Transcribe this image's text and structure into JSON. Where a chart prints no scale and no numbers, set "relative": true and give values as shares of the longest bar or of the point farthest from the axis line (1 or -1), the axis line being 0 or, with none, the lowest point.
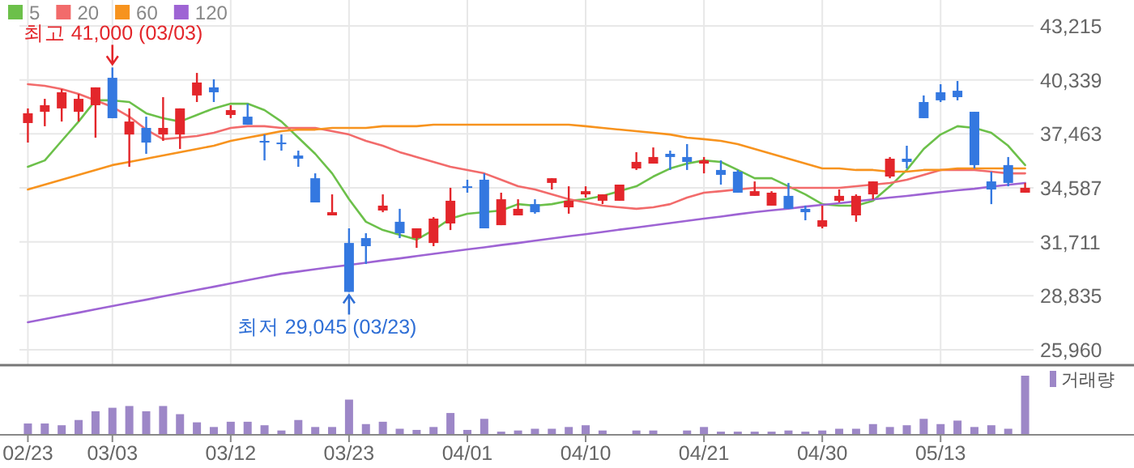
{
  "chart_data": [
    {
      "type": "candlestick",
      "categories": [
        "02/23",
        null,
        null,
        null,
        null,
        "03/03",
        null,
        null,
        null,
        null,
        null,
        null,
        "03/12",
        null,
        null,
        null,
        null,
        null,
        null,
        "03/23",
        null,
        null,
        null,
        null,
        null,
        null,
        "04/01",
        null,
        null,
        null,
        null,
        null,
        null,
        "04/10",
        null,
        null,
        null,
        null,
        null,
        null,
        "04/21",
        null,
        null,
        null,
        null,
        null,
        null,
        "04/30",
        null,
        null,
        null,
        null,
        null,
        null,
        "05/13",
        null,
        null,
        null,
        null,
        null
      ],
      "ylim": [
        25960,
        43215
      ],
      "yticks": [
        {
          "value": 43215,
          "label": "43,215"
        },
        {
          "value": 40339,
          "label": "40,339"
        },
        {
          "value": 37463,
          "label": "37,463"
        },
        {
          "value": 34587,
          "label": "34,587"
        },
        {
          "value": 31711,
          "label": "31,711"
        },
        {
          "value": 28835,
          "label": "28,835"
        },
        {
          "value": 25960,
          "label": "25,960"
        }
      ],
      "grid": true,
      "legend": "top left",
      "tick_labels": "y",
      "annotations": [
        {
          "text": "최고 41,000 (03/03)",
          "x": "03/03",
          "y": 41000
        },
        {
          "text": "최저 29,045 (03/23)",
          "x": "03/23",
          "y": 29045
        }
      ],
      "series": [
        {
          "type": "line",
          "name": "5",
          "color": "#6cc04a",
          "values": [
            35710,
            36050,
            37090,
            38120,
            39250,
            39250,
            39160,
            38560,
            38300,
            38120,
            38470,
            38820,
            39070,
            39070,
            38730,
            38120,
            37260,
            36400,
            35360,
            33980,
            32780,
            32340,
            32090,
            31830,
            32340,
            32950,
            33210,
            33290,
            33380,
            33720,
            33640,
            33720,
            33900,
            33980,
            34160,
            34410,
            34670,
            35190,
            35620,
            35880,
            36050,
            35970,
            35540,
            35100,
            35100,
            34670,
            34240,
            33720,
            33640,
            33640,
            33900,
            34670,
            35540,
            36660,
            37430,
            37870,
            37780,
            37520,
            36830,
            35800
          ]
        },
        {
          "type": "line",
          "name": "20",
          "color": "#f26b6b",
          "values": [
            40110,
            40020,
            39850,
            39590,
            39250,
            38900,
            38380,
            37690,
            37180,
            37260,
            37350,
            37520,
            37780,
            37870,
            37870,
            37780,
            37780,
            37780,
            37610,
            37430,
            37090,
            36830,
            36490,
            36230,
            35970,
            35710,
            35540,
            35360,
            35020,
            34670,
            34500,
            34240,
            33980,
            33810,
            33640,
            33550,
            33470,
            33550,
            33720,
            34070,
            34330,
            34410,
            34500,
            34590,
            34590,
            34590,
            34590,
            34590,
            34590,
            34670,
            34760,
            34850,
            35020,
            35280,
            35540,
            35540,
            35540,
            35450,
            35360,
            35360
          ]
        },
        {
          "type": "line",
          "name": "60",
          "color": "#f7931e",
          "values": [
            34500,
            34760,
            35020,
            35280,
            35540,
            35800,
            35970,
            36140,
            36310,
            36490,
            36660,
            36830,
            37090,
            37260,
            37430,
            37610,
            37690,
            37690,
            37780,
            37780,
            37780,
            37870,
            37870,
            37870,
            37950,
            37950,
            37950,
            37950,
            37950,
            37950,
            37950,
            37950,
            37950,
            37870,
            37780,
            37690,
            37610,
            37520,
            37430,
            37260,
            37180,
            37090,
            36920,
            36660,
            36400,
            36140,
            35880,
            35620,
            35620,
            35540,
            35540,
            35450,
            35450,
            35540,
            35540,
            35620,
            35620,
            35620,
            35620,
            35620
          ]
        },
        {
          "type": "line",
          "name": "120",
          "color": "#9e64d4",
          "values": [
            27430,
            27600,
            27770,
            27940,
            28120,
            28290,
            28460,
            28630,
            28810,
            28980,
            29150,
            29320,
            29500,
            29670,
            29840,
            30010,
            30130,
            30250,
            30370,
            30480,
            30600,
            30720,
            30830,
            30950,
            31070,
            31190,
            31310,
            31420,
            31540,
            31650,
            31770,
            31890,
            32010,
            32120,
            32240,
            32360,
            32470,
            32590,
            32710,
            32830,
            32950,
            33060,
            33180,
            33290,
            33390,
            33480,
            33590,
            33680,
            33770,
            33870,
            33970,
            34070,
            34160,
            34260,
            34360,
            34460,
            34540,
            34650,
            34750,
            34850
          ]
        },
        {
          "type": "candlestick",
          "colors": [
            "#e3262b",
            "#e3262b",
            "#e3262b",
            "#e3262b",
            "#e3262b",
            "#3478e0",
            "#e3262b",
            "#3478e0",
            "#e3262b",
            "#e3262b",
            "#e3262b",
            "#3478e0",
            "#e3262b",
            "#3478e0",
            "#3478e0",
            "#3478e0",
            "#3478e0",
            "#3478e0",
            "#e3262b",
            "#3478e0",
            "#3478e0",
            "#e3262b",
            "#3478e0",
            "#e3262b",
            "#e3262b",
            "#e3262b",
            "#3478e0",
            "#3478e0",
            "#e3262b",
            "#e3262b",
            "#3478e0",
            "#e3262b",
            "#e3262b",
            "#e3262b",
            "#e3262b",
            "#e3262b",
            "#e3262b",
            "#e3262b",
            "#3478e0",
            "#3478e0",
            "#e3262b",
            "#3478e0",
            "#3478e0",
            "#e3262b",
            "#e3262b",
            "#3478e0",
            "#3478e0",
            "#e3262b",
            "#e3262b",
            "#e3262b",
            "#e3262b",
            "#e3262b",
            "#3478e0",
            "#3478e0",
            "#3478e0",
            "#3478e0",
            "#3478e0",
            "#3478e0",
            "#3478e0",
            "#e3262b"
          ],
          "ohlc": [
            [
              38040,
              38820,
              37000,
              38560
            ],
            [
              38640,
              39330,
              37870,
              38990
            ],
            [
              38820,
              39850,
              38120,
              39680
            ],
            [
              38640,
              39590,
              38120,
              39330
            ],
            [
              38990,
              39940,
              37260,
              39940
            ],
            [
              40450,
              41000,
              38300,
              38300
            ],
            [
              37430,
              38820,
              35710,
              38120
            ],
            [
              37780,
              38380,
              36400,
              37000
            ],
            [
              37430,
              39420,
              37090,
              37780
            ],
            [
              37430,
              38820,
              36660,
              38820
            ],
            [
              39510,
              40710,
              39160,
              40200
            ],
            [
              39940,
              40370,
              39160,
              39680
            ],
            [
              38470,
              38990,
              38300,
              38730
            ],
            [
              38380,
              39070,
              37950,
              37950
            ],
            [
              37090,
              37430,
              36050,
              37000
            ],
            [
              37000,
              37430,
              36570,
              36920
            ],
            [
              36310,
              36570,
              35710,
              36140
            ],
            [
              35100,
              35360,
              33810,
              33810
            ],
            [
              33120,
              34240,
              33120,
              33290
            ],
            [
              31650,
              32430,
              29045,
              29045
            ],
            [
              31910,
              32170,
              30530,
              31480
            ],
            [
              33380,
              34240,
              33290,
              33640
            ],
            [
              32780,
              33470,
              31910,
              32170
            ],
            [
              31910,
              32430,
              31390,
              32430
            ],
            [
              31650,
              33030,
              31480,
              32950
            ],
            [
              32690,
              34590,
              32340,
              33900
            ],
            [
              34670,
              35020,
              34330,
              34590
            ],
            [
              35020,
              35360,
              32430,
              32430
            ],
            [
              32600,
              34330,
              32600,
              33980
            ],
            [
              33120,
              33980,
              33120,
              33470
            ],
            [
              33720,
              33980,
              33210,
              33290
            ],
            [
              34850,
              35100,
              34500,
              35100
            ],
            [
              33550,
              34670,
              33210,
              33900
            ],
            [
              34240,
              34670,
              34070,
              34410
            ],
            [
              33900,
              34240,
              33720,
              34240
            ],
            [
              33900,
              34760,
              33900,
              34760
            ],
            [
              35620,
              36490,
              35540,
              35970
            ],
            [
              35880,
              36740,
              35880,
              36230
            ],
            [
              36400,
              36570,
              35540,
              36230
            ],
            [
              36230,
              36920,
              35540,
              35970
            ],
            [
              35880,
              36230,
              35360,
              36050
            ],
            [
              35540,
              36050,
              34760,
              35280
            ],
            [
              35450,
              35540,
              34330,
              34330
            ],
            [
              34160,
              34930,
              34160,
              34410
            ],
            [
              33640,
              34410,
              33640,
              34330
            ],
            [
              34160,
              34850,
              33470,
              33470
            ],
            [
              33470,
              33640,
              32860,
              33290
            ],
            [
              32520,
              33640,
              32430,
              32860
            ],
            [
              33900,
              34500,
              33810,
              34160
            ],
            [
              33120,
              34240,
              32780,
              34160
            ],
            [
              34240,
              34930,
              33980,
              34930
            ],
            [
              35190,
              36230,
              35100,
              36140
            ],
            [
              36140,
              36830,
              35620,
              35970
            ],
            [
              39160,
              39510,
              38300,
              38300
            ],
            [
              39680,
              40110,
              39160,
              39250
            ],
            [
              39760,
              40280,
              39250,
              39420
            ],
            [
              38640,
              38640,
              35620,
              35800
            ],
            [
              34930,
              35450,
              33720,
              34500
            ],
            [
              35800,
              36230,
              34670,
              34850
            ],
            [
              34330,
              34850,
              34330,
              34590
            ]
          ]
        }
      ]
    },
    {
      "type": "bar",
      "relative": true,
      "categories": [
        "02/23",
        null,
        null,
        null,
        null,
        "03/03",
        null,
        null,
        null,
        null,
        null,
        null,
        "03/12",
        null,
        null,
        null,
        null,
        null,
        null,
        "03/23",
        null,
        null,
        null,
        null,
        null,
        null,
        "04/01",
        null,
        null,
        null,
        null,
        null,
        null,
        "04/10",
        null,
        null,
        null,
        null,
        null,
        null,
        "04/21",
        null,
        null,
        null,
        null,
        null,
        null,
        "04/30",
        null,
        null,
        null,
        null,
        null,
        null,
        "05/13",
        null,
        null,
        null,
        null,
        null
      ],
      "tick_labels": "x",
      "legend": "top right",
      "series": [
        {
          "name": "거래량",
          "color": "#9d87c7",
          "values": [
            0.18,
            0.18,
            0.15,
            0.24,
            0.39,
            0.45,
            0.48,
            0.39,
            0.48,
            0.34,
            0.2,
            0.12,
            0.21,
            0.21,
            0.15,
            0.06,
            0.24,
            0.12,
            0.12,
            0.59,
            0.17,
            0.21,
            0.09,
            0.07,
            0.12,
            0.36,
            0.07,
            0.26,
            0.04,
            0.06,
            0.09,
            0.09,
            0.12,
            0.15,
            0.06,
            0,
            0.06,
            0.06,
            0,
            0.06,
            0.12,
            0.04,
            0.04,
            0.04,
            0.04,
            0.06,
            0.04,
            0.06,
            0.09,
            0.09,
            0.17,
            0.12,
            0.15,
            0.26,
            0.17,
            0.23,
            0.12,
            0.15,
            0.09,
            1
          ]
        }
      ]
    }
  ]
}
